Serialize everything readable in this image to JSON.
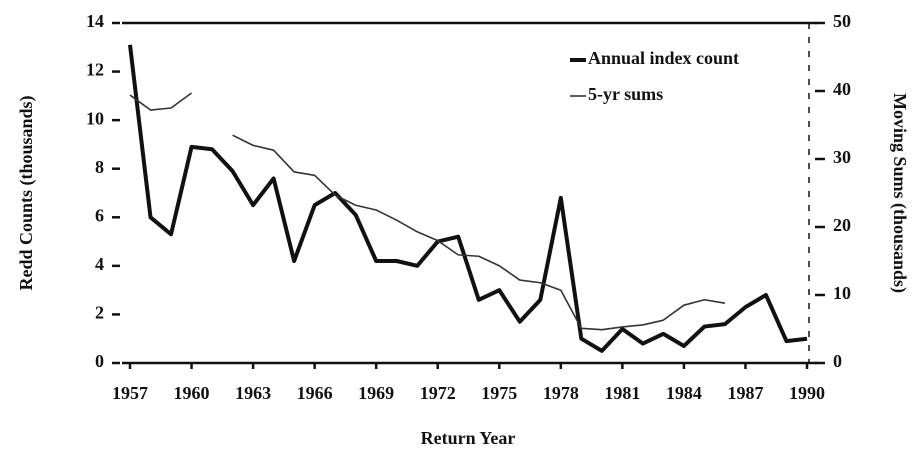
{
  "chart_data": {
    "type": "line",
    "x_label": "Return Year",
    "y_label": "Redd Counts (thousands)",
    "y2_label": "Moving Sums (thousands)",
    "x": [
      1957,
      1958,
      1959,
      1960,
      1961,
      1962,
      1963,
      1964,
      1965,
      1966,
      1967,
      1968,
      1969,
      1970,
      1971,
      1972,
      1973,
      1974,
      1975,
      1976,
      1977,
      1978,
      1979,
      1980,
      1981,
      1982,
      1983,
      1984,
      1985,
      1986,
      1987,
      1988,
      1989,
      1990
    ],
    "series": [
      {
        "name": "Annual index count",
        "color": "#111111",
        "width": 4,
        "values": [
          13.1,
          6.0,
          5.3,
          8.9,
          8.8,
          7.9,
          6.5,
          7.6,
          4.2,
          6.5,
          7.0,
          6.1,
          4.2,
          4.2,
          4.0,
          5.0,
          5.2,
          2.6,
          3.0,
          1.7,
          2.6,
          6.8,
          1.0,
          0.5,
          1.4,
          0.8,
          1.2,
          0.7,
          1.5,
          1.6,
          2.3,
          2.8,
          0.9,
          1.0
        ]
      },
      {
        "name": "5-yr sums",
        "color": "#333333",
        "width": 1.6,
        "axis": "y2",
        "values": [
          39.4,
          37.2,
          37.5,
          39.7,
          null,
          33.5,
          32.0,
          31.3,
          28.1,
          27.6,
          24.7,
          23.2,
          22.5,
          21.0,
          19.3,
          18.0,
          15.9,
          15.7,
          14.3,
          12.2,
          11.8,
          10.7,
          5.1,
          4.9,
          5.3,
          5.6,
          6.3,
          8.5,
          9.3,
          8.8,
          null,
          null,
          null,
          null
        ]
      }
    ],
    "xlim": [
      1957,
      1990
    ],
    "xticks": [
      1957,
      1960,
      1963,
      1966,
      1969,
      1972,
      1975,
      1978,
      1981,
      1984,
      1987,
      1990
    ],
    "ylim": [
      0,
      14
    ],
    "yticks": [
      0,
      2,
      4,
      6,
      8,
      10,
      12,
      14
    ],
    "y2lim": [
      0,
      50
    ],
    "y2ticks": [
      0,
      10,
      20,
      30,
      40,
      50
    ],
    "legend": "top-right"
  }
}
